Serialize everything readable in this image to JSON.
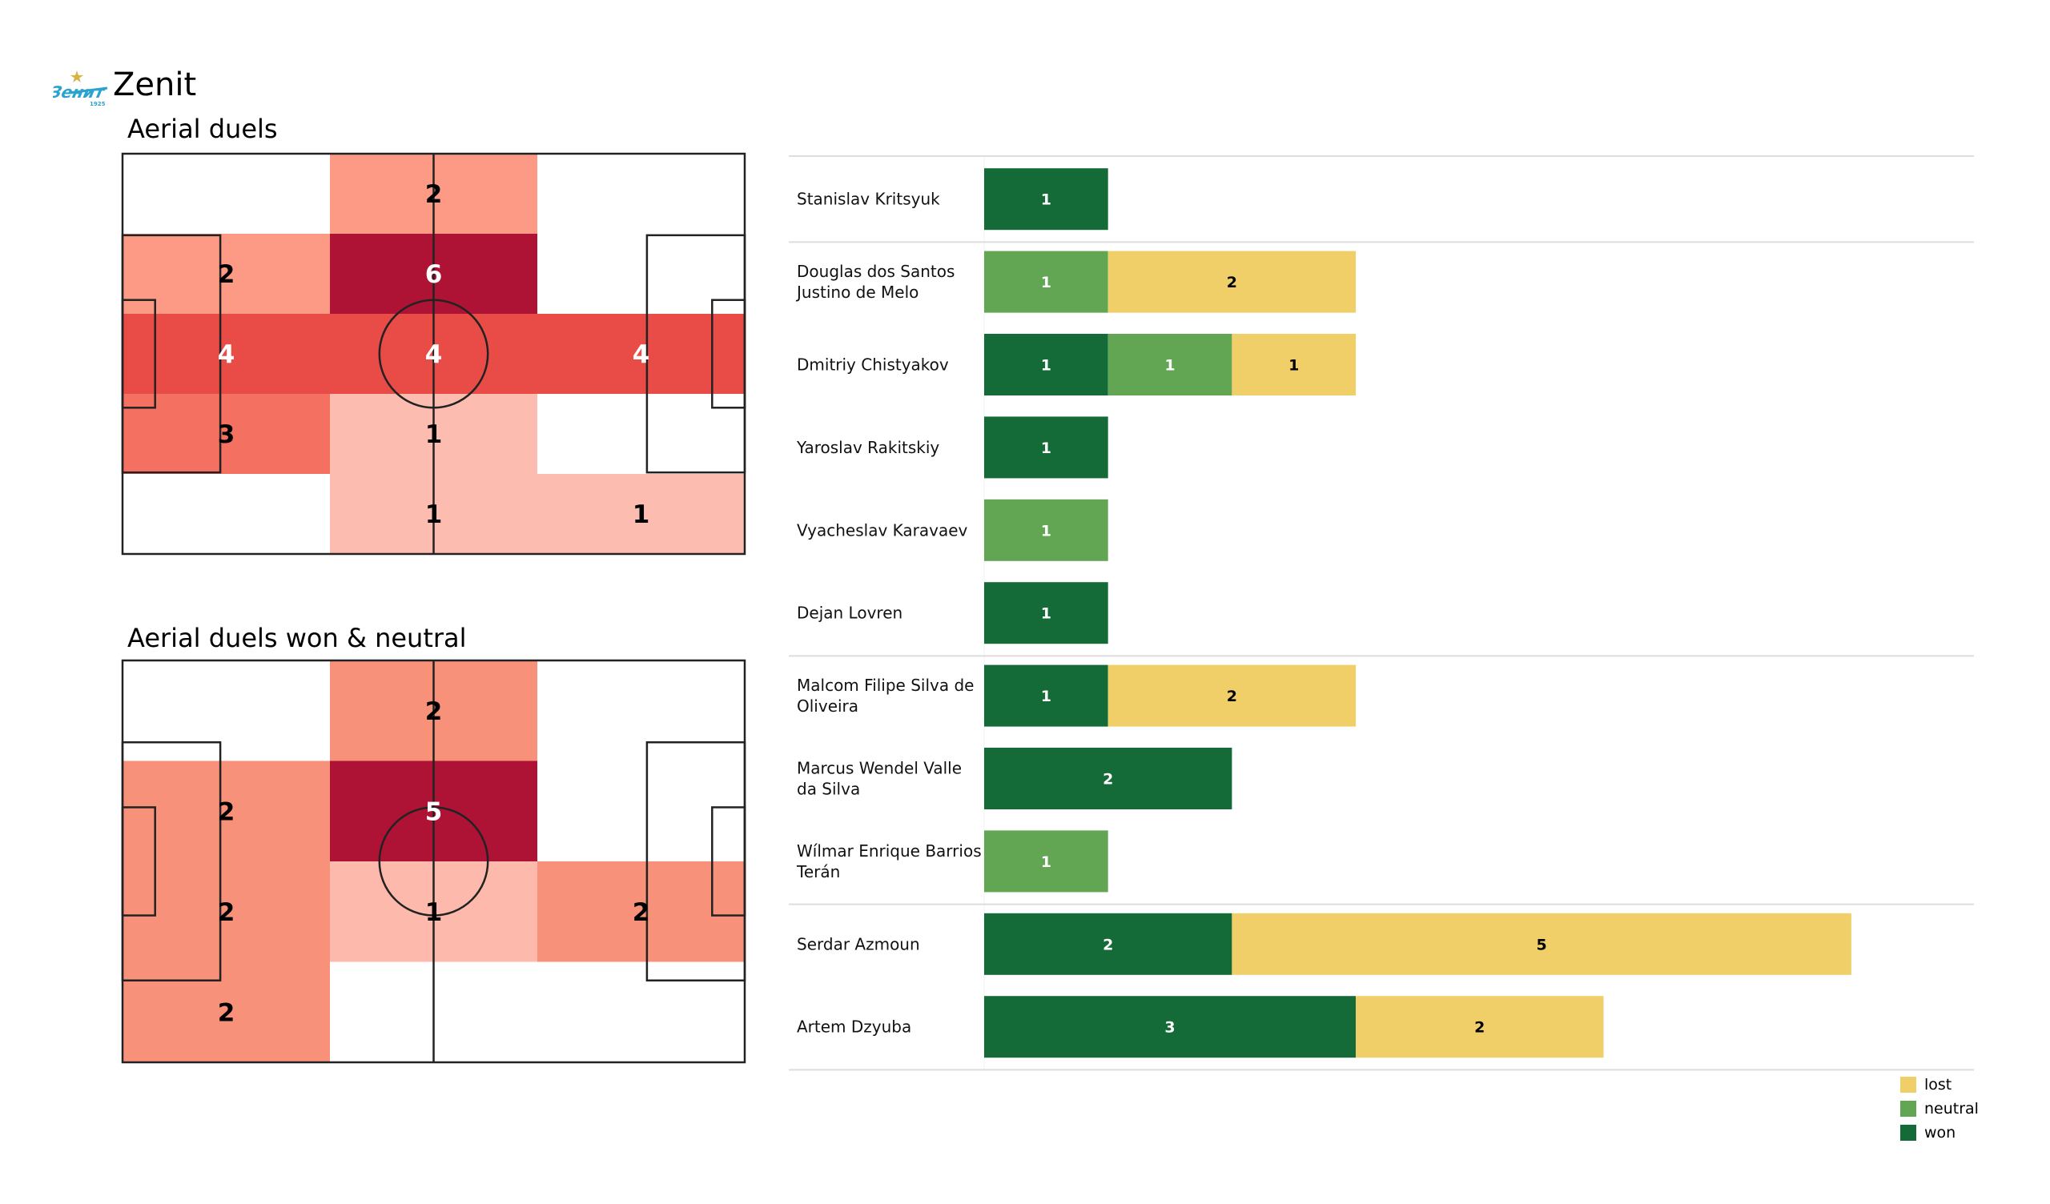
{
  "header": {
    "team_name": "Zenit",
    "logo_icon": "zenit-club-crest-icon",
    "logo_text": "Зенит",
    "logo_year": "1925"
  },
  "colors": {
    "won": "#156b37",
    "neutral": "#62a553",
    "lost": "#f0cf69",
    "pitch_line": "#222222",
    "separator": "#dddddd"
  },
  "chart_data": [
    {
      "type": "heatmap",
      "title": "Aerial duels",
      "grid_rows": 5,
      "grid_cols": 3,
      "values": [
        [
          0,
          2,
          0
        ],
        [
          2,
          6,
          0
        ],
        [
          4,
          4,
          4
        ],
        [
          3,
          1,
          0
        ],
        [
          0,
          1,
          1
        ]
      ],
      "cell_colors": [
        [
          "#ffffff",
          "#fc9a85",
          "#ffffff"
        ],
        [
          "#fc9a85",
          "#ae1235",
          "#ffffff"
        ],
        [
          "#e94b47",
          "#e94b47",
          "#e94b47"
        ],
        [
          "#f47060",
          "#fdbcb0",
          "#ffffff"
        ],
        [
          "#ffffff",
          "#fdbcb0",
          "#fdbcb0"
        ]
      ],
      "label_colors": [
        [
          "",
          "#000000",
          ""
        ],
        [
          "#000000",
          "#ffffff",
          ""
        ],
        [
          "#ffffff",
          "#ffffff",
          "#ffffff"
        ],
        [
          "#000000",
          "#000000",
          ""
        ],
        [
          "",
          "#000000",
          "#000000"
        ]
      ]
    },
    {
      "type": "heatmap",
      "title": "Aerial duels won & neutral",
      "grid_rows": 4,
      "grid_cols": 3,
      "values": [
        [
          0,
          2,
          0
        ],
        [
          2,
          5,
          0
        ],
        [
          2,
          1,
          2
        ],
        [
          2,
          0,
          0
        ]
      ],
      "cell_colors": [
        [
          "#ffffff",
          "#f8917a",
          "#ffffff"
        ],
        [
          "#f8917a",
          "#ae1235",
          "#ffffff"
        ],
        [
          "#f8917a",
          "#fdb9ab",
          "#f8917a"
        ],
        [
          "#f8917a",
          "#ffffff",
          "#ffffff"
        ]
      ],
      "label_colors": [
        [
          "",
          "#000000",
          ""
        ],
        [
          "#000000",
          "#ffffff",
          ""
        ],
        [
          "#000000",
          "#000000",
          "#000000"
        ],
        [
          "#000000",
          "",
          ""
        ]
      ]
    },
    {
      "type": "bar",
      "orientation": "horizontal-stacked",
      "series_order": [
        "won",
        "neutral",
        "lost"
      ],
      "players": [
        {
          "name": [
            "Stanislav Kritsyuk"
          ],
          "won": 1,
          "neutral": 0,
          "lost": 0,
          "group_end": true
        },
        {
          "name": [
            "Douglas dos Santos",
            "Justino de Melo"
          ],
          "won": 0,
          "neutral": 1,
          "lost": 2
        },
        {
          "name": [
            "Dmitriy Chistyakov"
          ],
          "won": 1,
          "neutral": 1,
          "lost": 1
        },
        {
          "name": [
            "Yaroslav Rakitskiy"
          ],
          "won": 1,
          "neutral": 0,
          "lost": 0
        },
        {
          "name": [
            "Vyacheslav Karavaev"
          ],
          "won": 0,
          "neutral": 1,
          "lost": 0
        },
        {
          "name": [
            "Dejan Lovren"
          ],
          "won": 1,
          "neutral": 0,
          "lost": 0,
          "group_end": true
        },
        {
          "name": [
            "Malcom Filipe Silva de",
            "Oliveira"
          ],
          "won": 1,
          "neutral": 0,
          "lost": 2
        },
        {
          "name": [
            "Marcus Wendel Valle",
            "da Silva"
          ],
          "won": 2,
          "neutral": 0,
          "lost": 0
        },
        {
          "name": [
            "Wílmar Enrique Barrios",
            "Terán"
          ],
          "won": 0,
          "neutral": 1,
          "lost": 0,
          "group_end": true
        },
        {
          "name": [
            "Serdar Azmoun"
          ],
          "won": 2,
          "neutral": 0,
          "lost": 5
        },
        {
          "name": [
            "Artem Dzyuba"
          ],
          "won": 3,
          "neutral": 0,
          "lost": 2,
          "group_end": true
        }
      ],
      "legend": [
        {
          "key": "lost",
          "label": "lost"
        },
        {
          "key": "neutral",
          "label": "neutral"
        },
        {
          "key": "won",
          "label": "won"
        }
      ],
      "legend_position": "bottom-right"
    }
  ]
}
